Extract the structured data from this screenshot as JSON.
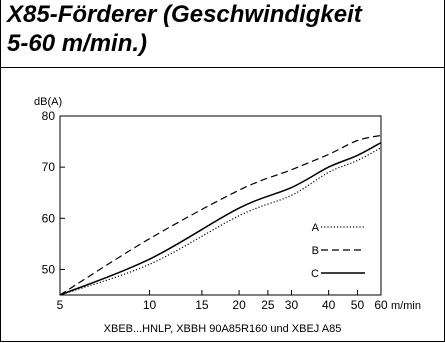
{
  "title": {
    "line1": "X85-Förderer (Geschwindigkeit",
    "line2": "5-60 m/min.)"
  },
  "caption": "XBEB...HNLP, XBBH 90A85R160 und XBEJ A85",
  "chart_data": {
    "type": "line",
    "title": "X85-Förderer (Geschwindigkeit 5-60 m/min.)",
    "ylabel": "dB(A)",
    "xlabel": "m/min",
    "xlim": [
      5,
      60
    ],
    "ylim": [
      45,
      80
    ],
    "x_scale": "log",
    "x_ticks": [
      5,
      10,
      15,
      20,
      25,
      30,
      40,
      50,
      60
    ],
    "y_ticks": [
      50,
      60,
      70,
      80
    ],
    "grid": false,
    "legend_position": "bottom-right",
    "series": [
      {
        "name": "A",
        "style": "dotted",
        "color": "#000000",
        "x": [
          5,
          10,
          20,
          30,
          40,
          50,
          60
        ],
        "y": [
          45,
          51,
          60.5,
          64.5,
          69,
          71.3,
          73.8
        ]
      },
      {
        "name": "B",
        "style": "dashed",
        "color": "#000000",
        "x": [
          5,
          10,
          20,
          30,
          40,
          50,
          60
        ],
        "y": [
          45,
          56,
          65.5,
          69.5,
          72.5,
          75.2,
          76.2
        ]
      },
      {
        "name": "C",
        "style": "solid",
        "color": "#000000",
        "x": [
          5,
          10,
          20,
          30,
          40,
          50,
          60
        ],
        "y": [
          45,
          52,
          62,
          66,
          70,
          72.3,
          74.8
        ]
      }
    ]
  }
}
